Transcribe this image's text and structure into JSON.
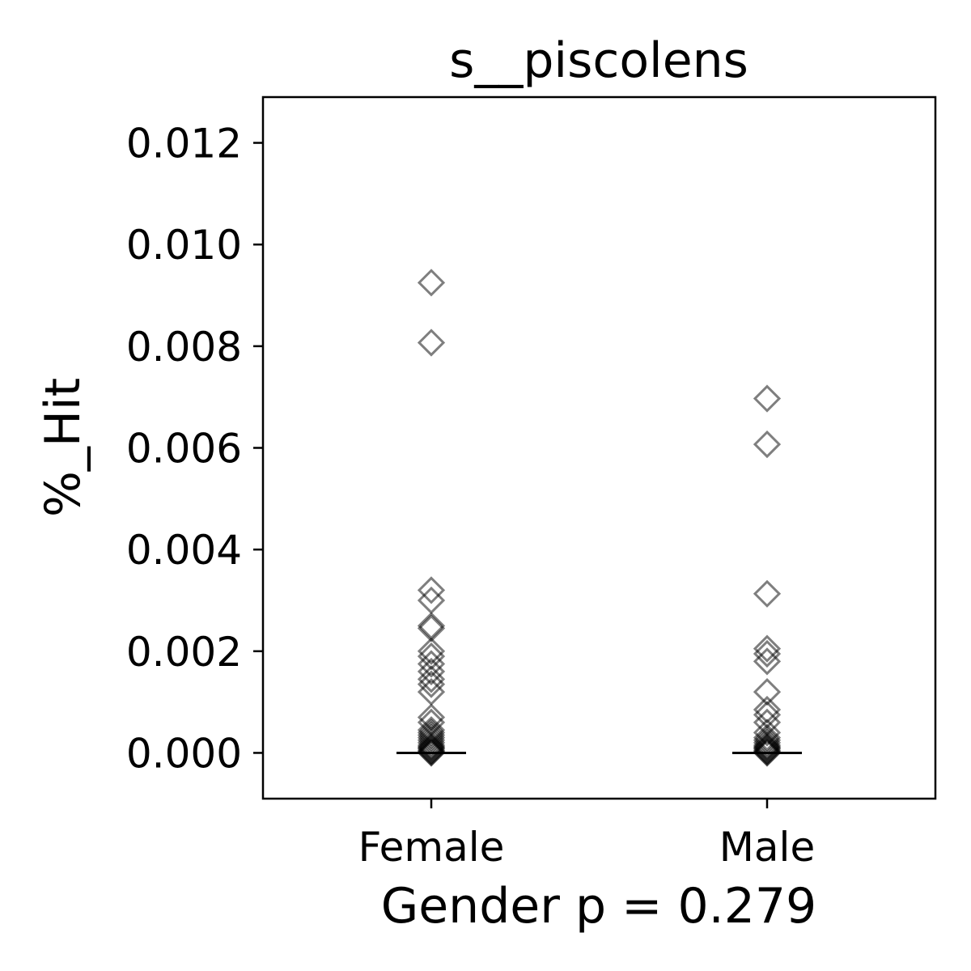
{
  "chart_data": {
    "type": "scatter",
    "title": "s__piscolens",
    "xlabel": "Gender p = 0.279",
    "ylabel": "%_Hit",
    "categories": [
      "Female",
      "Male"
    ],
    "ylim": [
      -0.0009,
      0.0129
    ],
    "yticks": [
      "0.000",
      "0.002",
      "0.004",
      "0.006",
      "0.008",
      "0.010",
      "0.012"
    ],
    "grid": false,
    "marker": "open diamond",
    "marker_color": "#000000",
    "series": [
      {
        "category": "Female",
        "median": 0.0,
        "values": [
          0.00925,
          0.00807,
          0.0032,
          0.003,
          0.0025,
          0.00245,
          0.002,
          0.0019,
          0.00175,
          0.0016,
          0.00145,
          0.00135,
          0.0012,
          0.0007,
          0.0006,
          0.00045,
          0.0004,
          0.00035,
          0.0003,
          0.00025,
          0.0002,
          0.00015,
          0.00012,
          0.0001,
          8e-05,
          5e-05,
          3e-05,
          1e-05,
          0.0
        ]
      },
      {
        "category": "Male",
        "median": 0.0,
        "values": [
          0.00697,
          0.00607,
          0.00313,
          0.00205,
          0.00195,
          0.0018,
          0.0012,
          0.00085,
          0.00075,
          0.0006,
          0.0004,
          0.0003,
          0.00025,
          0.0002,
          0.00015,
          0.00012,
          0.0001,
          8e-05,
          5e-05,
          3e-05,
          1e-05,
          0.0
        ]
      }
    ]
  }
}
